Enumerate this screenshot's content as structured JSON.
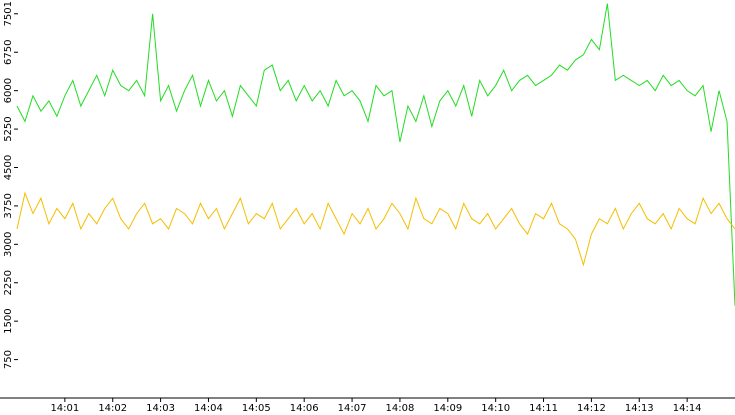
{
  "chart_data": {
    "type": "line",
    "x": [
      50400,
      50410,
      50420,
      50430,
      50440,
      50450,
      50460,
      50470,
      50480,
      50490,
      50500,
      50510,
      50520,
      50530,
      50540,
      50550,
      50560,
      50570,
      50580,
      50590,
      50600,
      50610,
      50620,
      50630,
      50640,
      50650,
      50660,
      50670,
      50680,
      50690,
      50700,
      50710,
      50720,
      50730,
      50740,
      50750,
      50760,
      50770,
      50780,
      50790,
      50800,
      50810,
      50820,
      50830,
      50840,
      50850,
      50860,
      50870,
      50880,
      50890,
      50900,
      50910,
      50920,
      50930,
      50940,
      50950,
      50960,
      50970,
      50980,
      50990,
      51000,
      51010,
      51020,
      51030,
      51040,
      51050,
      51060,
      51070,
      51080,
      51090,
      51100,
      51110,
      51120,
      51130,
      51140,
      51150,
      51160,
      51170,
      51180,
      51190,
      51200,
      51210,
      51220,
      51230,
      51240,
      51250,
      51260,
      51270,
      51280,
      51290,
      51300
    ],
    "series": [
      {
        "color": "#22dd22",
        "values": [
          5700,
          5400,
          5900,
          5600,
          5800,
          5500,
          5900,
          6200,
          5700,
          6000,
          6300,
          5900,
          6400,
          6100,
          6000,
          6200,
          5900,
          7500,
          5800,
          6100,
          5600,
          6000,
          6300,
          5700,
          6200,
          5800,
          6000,
          5500,
          6100,
          5900,
          5700,
          6400,
          6500,
          6000,
          6200,
          5800,
          6100,
          5800,
          6000,
          5700,
          6200,
          5900,
          6000,
          5800,
          5400,
          6100,
          5900,
          6000,
          5000,
          5700,
          5400,
          5900,
          5300,
          5800,
          6000,
          5700,
          6100,
          5500,
          6200,
          5900,
          6100,
          6400,
          6000,
          6200,
          6300,
          6100,
          6200,
          6300,
          6500,
          6400,
          6600,
          6700,
          7000,
          6800,
          7700,
          6200,
          6300,
          6200,
          6100,
          6200,
          6000,
          6300,
          6100,
          6200,
          6000,
          5900,
          6100,
          5200,
          6000,
          5400,
          1800
        ]
      },
      {
        "color": "#f5be00",
        "values": [
          3300,
          4000,
          3600,
          3900,
          3400,
          3700,
          3500,
          3800,
          3300,
          3600,
          3400,
          3700,
          3900,
          3500,
          3300,
          3600,
          3800,
          3400,
          3500,
          3300,
          3700,
          3600,
          3400,
          3800,
          3500,
          3700,
          3300,
          3600,
          3900,
          3400,
          3600,
          3500,
          3800,
          3300,
          3500,
          3700,
          3400,
          3600,
          3300,
          3800,
          3500,
          3200,
          3600,
          3400,
          3700,
          3300,
          3500,
          3800,
          3600,
          3300,
          3900,
          3500,
          3400,
          3700,
          3600,
          3300,
          3800,
          3500,
          3400,
          3600,
          3300,
          3500,
          3700,
          3400,
          3200,
          3600,
          3500,
          3800,
          3400,
          3300,
          3100,
          2600,
          3200,
          3500,
          3400,
          3700,
          3300,
          3600,
          3800,
          3500,
          3400,
          3600,
          3300,
          3700,
          3500,
          3400,
          3900,
          3600,
          3800,
          3500,
          3300
        ]
      }
    ],
    "xlim": [
      50400,
      51300
    ],
    "xticks": [
      {
        "value": 50460,
        "label": "14:01"
      },
      {
        "value": 50520,
        "label": "14:02"
      },
      {
        "value": 50580,
        "label": "14:03"
      },
      {
        "value": 50640,
        "label": "14:04"
      },
      {
        "value": 50700,
        "label": "14:05"
      },
      {
        "value": 50760,
        "label": "14:06"
      },
      {
        "value": 50820,
        "label": "14:07"
      },
      {
        "value": 50880,
        "label": "14:08"
      },
      {
        "value": 50940,
        "label": "14:09"
      },
      {
        "value": 51000,
        "label": "14:10"
      },
      {
        "value": 51060,
        "label": "14:11"
      },
      {
        "value": 51120,
        "label": "14:12"
      },
      {
        "value": 51180,
        "label": "14:13"
      },
      {
        "value": 51240,
        "label": "14:14"
      }
    ],
    "ylim": [
      0,
      7770
    ],
    "yticks": [
      750,
      1500,
      2250,
      3000,
      3750,
      4500,
      5250,
      6000,
      6750,
      7501
    ]
  }
}
